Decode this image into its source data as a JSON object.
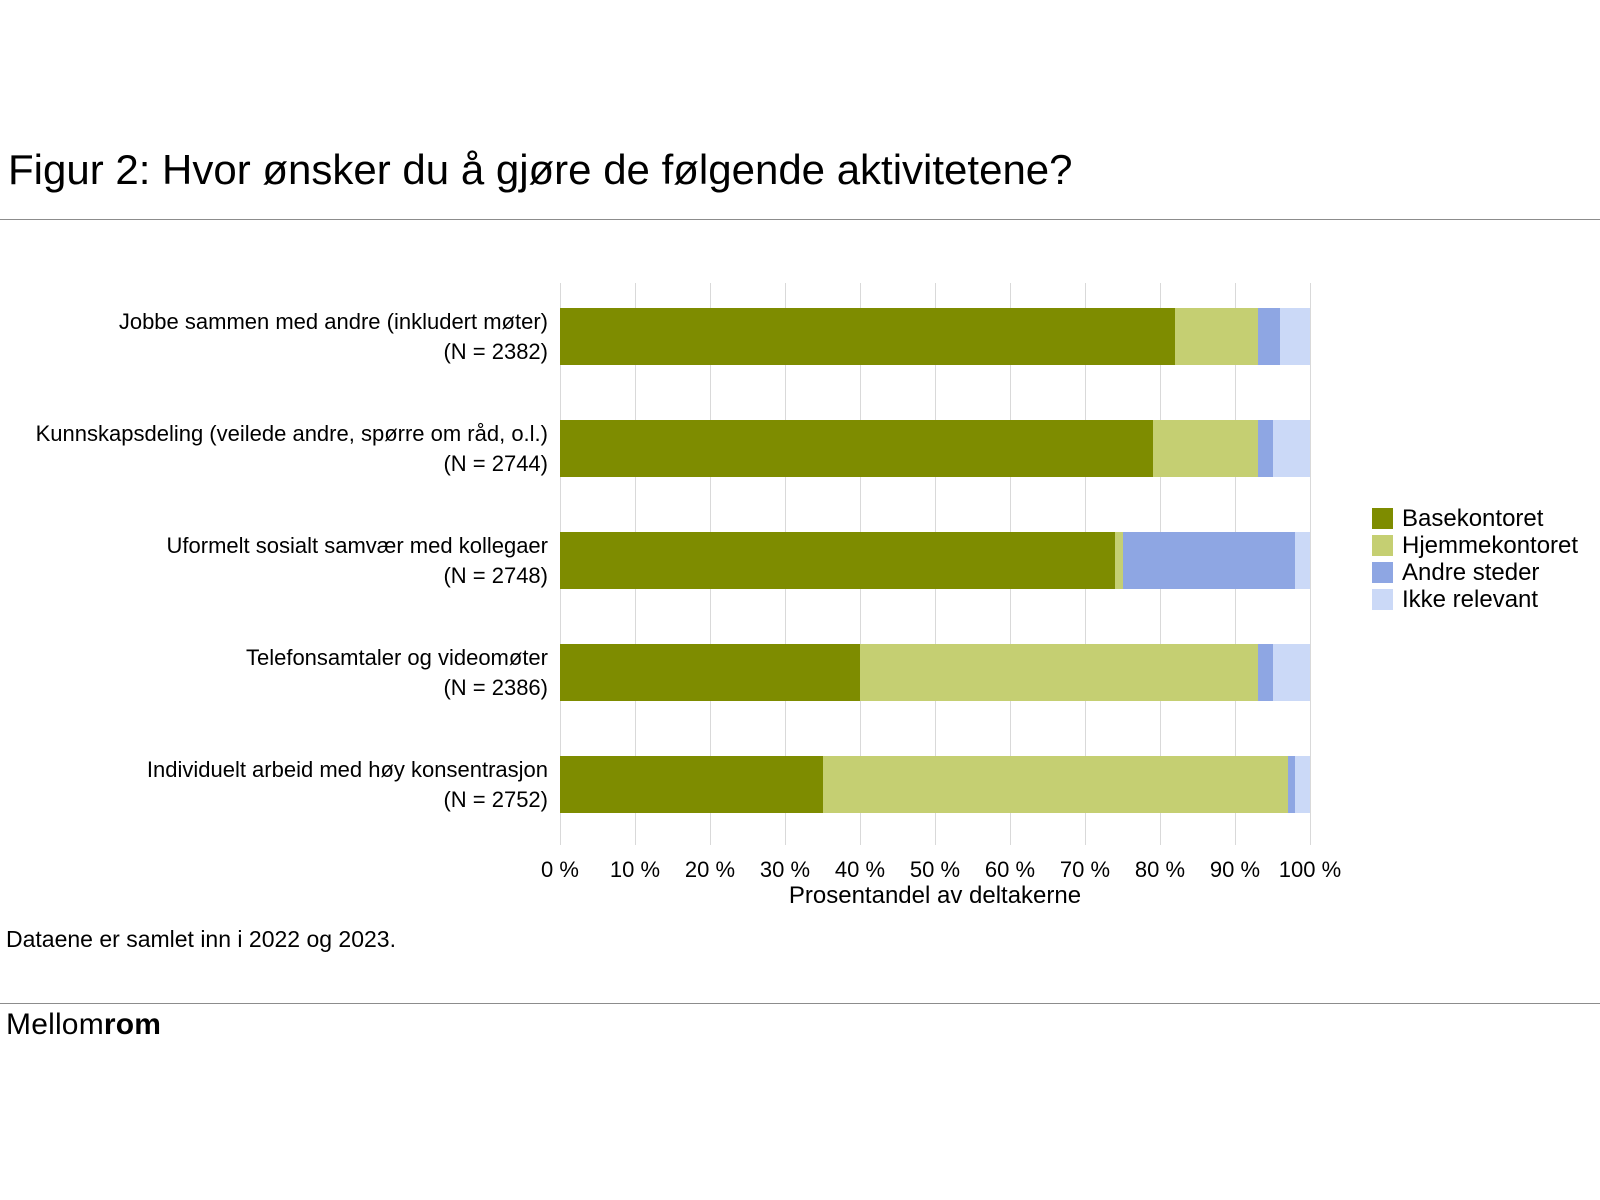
{
  "title": "Figur 2: Hvor ønsker du å gjøre de følgende aktivitetene?",
  "footnote": "Dataene er samlet inn i 2022 og 2023.",
  "logo": {
    "regular": "Mellom",
    "bold": "rom"
  },
  "chart_data": {
    "type": "bar",
    "orientation": "horizontal",
    "stacked": true,
    "grid": true,
    "legend_position": "right",
    "xlabel": "Prosentandel av deltakerne",
    "xlim": [
      0,
      100
    ],
    "x_ticks": [
      "0 %",
      "10 %",
      "20 %",
      "30 %",
      "40 %",
      "50 %",
      "60 %",
      "70 %",
      "80 %",
      "90 %",
      "100 %"
    ],
    "categories": [
      "Jobbe sammen med andre (inkludert møter)",
      "Kunnskapsdeling (veilede andre, spørre om råd, o.l.)",
      "Uformelt sosialt samvær med kollegaer",
      "Telefonsamtaler og videomøter",
      "Individuelt arbeid med høy konsentrasjon"
    ],
    "category_n": [
      "(N = 2382)",
      "(N = 2744)",
      "(N = 2748)",
      "(N = 2386)",
      "(N = 2752)"
    ],
    "series": [
      {
        "name": "Basekontoret",
        "color": "#7e8c00",
        "values": [
          82,
          79,
          74,
          40,
          35
        ]
      },
      {
        "name": "Hjemmekontoret",
        "color": "#c5cf72",
        "values": [
          11,
          14,
          1,
          53,
          62
        ]
      },
      {
        "name": "Andre steder",
        "color": "#8ea6e3",
        "values": [
          3,
          2,
          23,
          2,
          1
        ]
      },
      {
        "name": "Ikke relevant",
        "color": "#cbd9f7",
        "values": [
          4,
          5,
          2,
          5,
          2
        ]
      }
    ]
  }
}
